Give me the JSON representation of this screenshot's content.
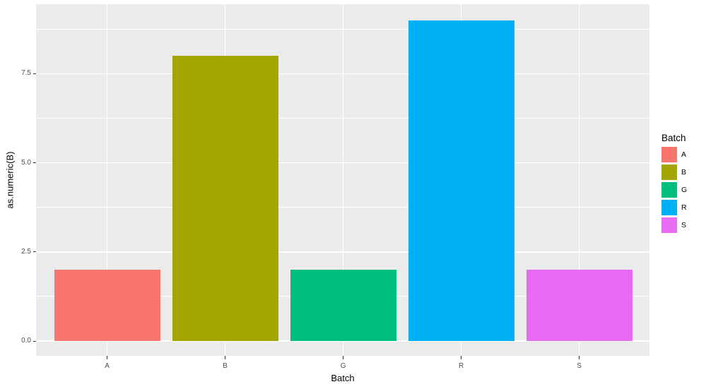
{
  "chart_data": {
    "type": "bar",
    "title": "",
    "xlabel": "Batch",
    "ylabel": "as.numeric(B)",
    "categories": [
      "A",
      "B",
      "G",
      "R",
      "S"
    ],
    "values": [
      2,
      8,
      2,
      9,
      2
    ],
    "bar_colors": [
      "#F8766D",
      "#A3A500",
      "#00BF7D",
      "#00B0F6",
      "#E76BF3"
    ],
    "ylim": [
      0,
      9
    ],
    "y_major_ticks": {
      "values": [
        0,
        2.5,
        5,
        7.5
      ],
      "labels": [
        "0.0",
        "2.5",
        "5.0",
        "7.5"
      ]
    },
    "y_minor_ticks": [
      1.25,
      3.75,
      6.25,
      8.75
    ],
    "grid": true,
    "legend": {
      "position": "right",
      "title": "Batch",
      "entries": [
        {
          "label": "A",
          "color": "#F8766D"
        },
        {
          "label": "B",
          "color": "#A3A500"
        },
        {
          "label": "G",
          "color": "#00BF7D"
        },
        {
          "label": "R",
          "color": "#00B0F6"
        },
        {
          "label": "S",
          "color": "#E76BF3"
        }
      ]
    },
    "theme": {
      "panel_bg": "#EBEBEB",
      "grid_color": "#FFFFFF",
      "tick_mark_color": "#333333",
      "tick_label_color": "#4D4D4D",
      "axis_title_color": "#000000",
      "background": "#FFFFFF"
    }
  }
}
